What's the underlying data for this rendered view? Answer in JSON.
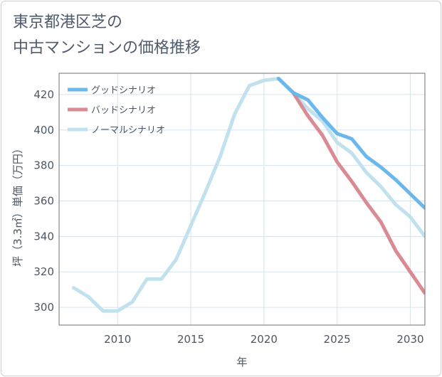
{
  "title_lines": [
    "東京都港区芝の",
    "中古マンションの価格推移"
  ],
  "chart_data": {
    "type": "line",
    "title": "東京都港区芝の中古マンションの価格推移",
    "xlabel": "年",
    "ylabel": "坪（3.3㎡）単価（万円）",
    "xlim": [
      2006,
      2031
    ],
    "ylim": [
      290,
      432
    ],
    "xticks": [
      2010,
      2015,
      2020,
      2025,
      2030
    ],
    "yticks": [
      300,
      320,
      340,
      360,
      380,
      400,
      420
    ],
    "grid": true,
    "legend_position": "top-left",
    "series": [
      {
        "name": "グッドシナリオ",
        "color": "#6bb8ec",
        "x": [
          2021,
          2022,
          2023,
          2024,
          2025,
          2026,
          2027,
          2028,
          2029,
          2030,
          2031
        ],
        "values": [
          429,
          421,
          417,
          407,
          398,
          395,
          385,
          379,
          372,
          364,
          356
        ]
      },
      {
        "name": "バッドシナリオ",
        "color": "#d98a92",
        "x": [
          2021,
          2022,
          2023,
          2024,
          2025,
          2026,
          2027,
          2028,
          2029,
          2030,
          2031
        ],
        "values": [
          429,
          421,
          408,
          397,
          382,
          371,
          359,
          348,
          332,
          320,
          308
        ]
      },
      {
        "name": "ノーマルシナリオ",
        "color": "#c2e1ef",
        "x": [
          2007,
          2008,
          2009,
          2010,
          2011,
          2012,
          2013,
          2014,
          2015,
          2016,
          2017,
          2018,
          2019,
          2020,
          2021,
          2022,
          2023,
          2024,
          2025,
          2026,
          2027,
          2028,
          2029,
          2030,
          2031
        ],
        "values": [
          311,
          306,
          298,
          298,
          303,
          316,
          316,
          327,
          346,
          365,
          385,
          409,
          425,
          428,
          429,
          421,
          412,
          405,
          393,
          387,
          376,
          368,
          358,
          351,
          340
        ]
      }
    ]
  }
}
